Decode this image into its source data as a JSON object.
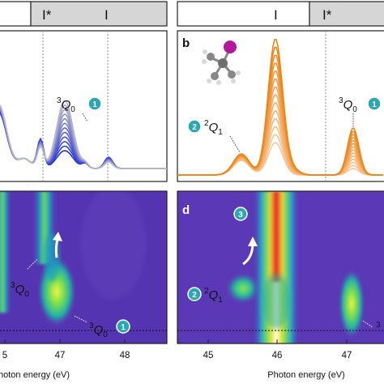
{
  "figure": {
    "panels": {
      "a": {
        "letter": ""
      },
      "b": {
        "letter": "b"
      },
      "c": {
        "letter": ""
      },
      "d": {
        "letter": "d"
      }
    },
    "top_bars": {
      "left": [
        "I*",
        "I"
      ],
      "right": [
        "I",
        "I*"
      ]
    },
    "annotations": {
      "a_q0": {
        "pre": "3",
        "main": "Q",
        "sub": "0",
        "badge": "1"
      },
      "b_q1": {
        "pre": "2",
        "main": "Q",
        "sub": "1",
        "badge": "2"
      },
      "b_q0": {
        "pre": "3",
        "main": "Q",
        "sub": "0",
        "badge": "1"
      },
      "c_q0_upper": {
        "pre": "3",
        "main": "Q",
        "sub": "0"
      },
      "c_q0_lower": {
        "pre": "3",
        "main": "Q",
        "sub": "0",
        "badge": "1"
      },
      "d_badge3": {
        "badge": "3"
      },
      "d_q1": {
        "pre": "2",
        "main": "Q",
        "sub": "1",
        "badge": "2"
      },
      "d_edge": {
        "pre": "3"
      }
    },
    "xaxis": {
      "left_ticks": [
        "5",
        "47",
        "48"
      ],
      "left_label": "hoton energy (eV)",
      "right_ticks": [
        "45",
        "46",
        "47"
      ],
      "right_label": "Photon energy (eV)"
    },
    "colors": {
      "blue_series": "#2430d8",
      "orange_series": "#f08a1c",
      "badge": "#2aa7b5",
      "heatmap_bg": "#5a38b6",
      "bar_fill": "#d6d6d6"
    }
  }
}
